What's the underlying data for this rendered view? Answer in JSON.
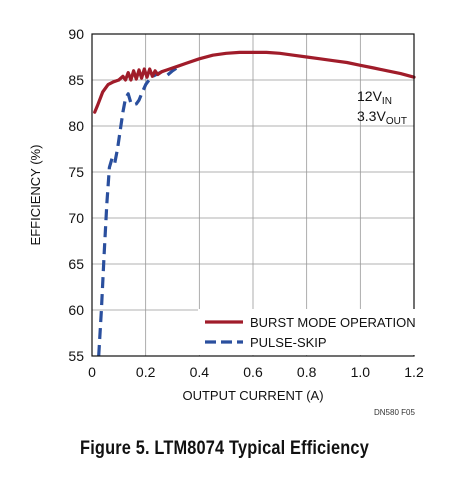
{
  "figure_code": "DN580 F05",
  "caption": "Figure 5. LTM8074 Typical Efficiency",
  "annotation": {
    "line1_main": "12V",
    "line1_sub": "IN",
    "line2_main": "3.3V",
    "line2_sub": "OUT"
  },
  "chart_data": {
    "type": "line",
    "title": "",
    "xlabel": "OUTPUT CURRENT (A)",
    "ylabel": "EFFICIENCY (%)",
    "xlim": [
      0,
      1.2
    ],
    "ylim": [
      55,
      90
    ],
    "xticks": [
      0,
      0.2,
      0.4,
      0.6,
      0.8,
      1.0,
      1.2
    ],
    "xtick_labels": [
      "0",
      "0.2",
      "0.4",
      "0.6",
      "0.8",
      "1.0",
      "1.2"
    ],
    "yticks": [
      55,
      60,
      65,
      70,
      75,
      80,
      85,
      90
    ],
    "ytick_labels": [
      "55",
      "60",
      "65",
      "70",
      "75",
      "80",
      "85",
      "90"
    ],
    "grid": true,
    "legend_position": "bottom-right",
    "series": [
      {
        "name": "BURST MODE OPERATION",
        "color": "#a01c2a",
        "style": "solid",
        "x": [
          0.01,
          0.02,
          0.04,
          0.06,
          0.08,
          0.1,
          0.115,
          0.125,
          0.135,
          0.145,
          0.155,
          0.165,
          0.175,
          0.185,
          0.195,
          0.205,
          0.215,
          0.225,
          0.235,
          0.245,
          0.26,
          0.28,
          0.3,
          0.32,
          0.35,
          0.4,
          0.45,
          0.5,
          0.55,
          0.6,
          0.65,
          0.7,
          0.75,
          0.8,
          0.85,
          0.9,
          0.95,
          1.0,
          1.05,
          1.1,
          1.15,
          1.2
        ],
        "y": [
          81.5,
          82.2,
          83.7,
          84.5,
          84.8,
          85.0,
          85.4,
          85.0,
          85.8,
          85.0,
          86.0,
          85.1,
          86.1,
          85.2,
          86.2,
          85.3,
          86.2,
          85.4,
          86.0,
          85.6,
          85.9,
          86.1,
          86.3,
          86.5,
          86.8,
          87.3,
          87.7,
          87.9,
          88.0,
          88.0,
          88.0,
          87.9,
          87.7,
          87.5,
          87.3,
          87.1,
          86.9,
          86.6,
          86.3,
          86.0,
          85.7,
          85.3
        ]
      },
      {
        "name": "PULSE-SKIP",
        "color": "#2a4f9e",
        "style": "dashed",
        "x": [
          0.025,
          0.035,
          0.045,
          0.055,
          0.065,
          0.075,
          0.085,
          0.095,
          0.105,
          0.115,
          0.125,
          0.135,
          0.145,
          0.155,
          0.165,
          0.175,
          0.185,
          0.2,
          0.22,
          0.24,
          0.26,
          0.28,
          0.3,
          0.32
        ],
        "y": [
          55.0,
          60.0,
          66.0,
          71.5,
          75.5,
          76.5,
          76.0,
          77.5,
          79.5,
          81.5,
          83.0,
          83.5,
          82.5,
          82.3,
          82.4,
          82.8,
          83.5,
          84.5,
          85.3,
          85.6,
          85.9,
          85.5,
          86.0,
          86.4
        ]
      }
    ]
  }
}
